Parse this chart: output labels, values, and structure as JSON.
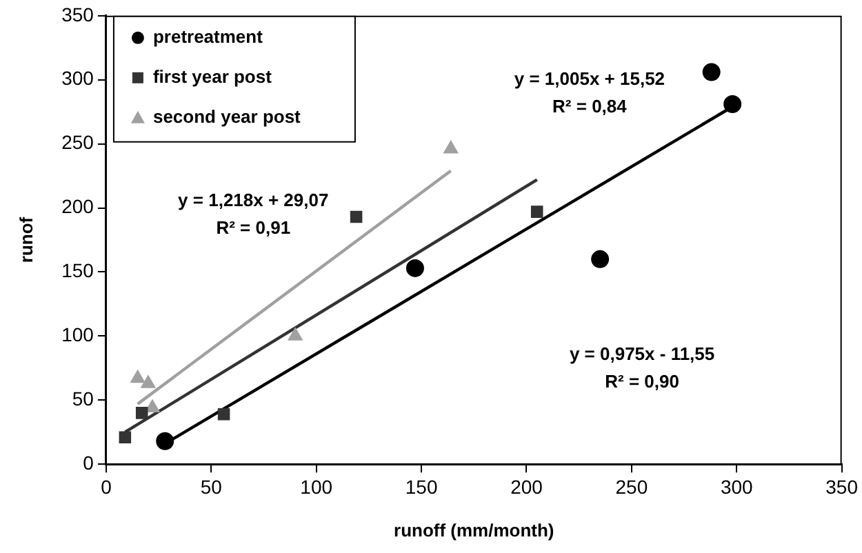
{
  "chart_data": {
    "type": "scatter",
    "xlabel": "runoff (mm/month)",
    "ylabel": "runof",
    "xlim": [
      0,
      350
    ],
    "xticks": [
      0,
      50,
      100,
      150,
      200,
      250,
      300,
      350
    ],
    "ylim": [
      0,
      350
    ],
    "yticks": [
      0,
      50,
      100,
      150,
      200,
      250,
      300,
      350
    ],
    "grid": false,
    "legend": "top left",
    "series": [
      {
        "name": "pretreatment",
        "color": "#000000",
        "marker": "circle",
        "x": [
          28,
          147,
          235,
          288,
          298
        ],
        "values": [
          18,
          153,
          160,
          306,
          281
        ]
      },
      {
        "name": "first year post",
        "color": "#333333",
        "marker": "square",
        "x": [
          9,
          17,
          56,
          119,
          205
        ],
        "values": [
          21,
          40,
          39,
          193,
          197
        ]
      },
      {
        "name": "second year post",
        "color": "#a0a0a0",
        "marker": "triangle",
        "x": [
          15,
          20,
          22,
          90,
          164
        ],
        "values": [
          67,
          63,
          44,
          100,
          246
        ]
      },
      {
        "type": "line",
        "color": "#000000",
        "x": [
          28,
          298
        ],
        "values": [
          16,
          279
        ]
      },
      {
        "type": "line",
        "color": "#333333",
        "x": [
          9,
          205
        ],
        "values": [
          25,
          222
        ]
      },
      {
        "type": "line",
        "color": "#a0a0a0",
        "x": [
          15,
          164
        ],
        "values": [
          47,
          229
        ]
      }
    ],
    "annotations": [
      "y = 1,005x + 15,52\nR² = 0,84",
      "y = 1,218x + 29,07\nR² = 0,91",
      "y = 0,975x - 11,55\nR² = 0,90"
    ]
  }
}
